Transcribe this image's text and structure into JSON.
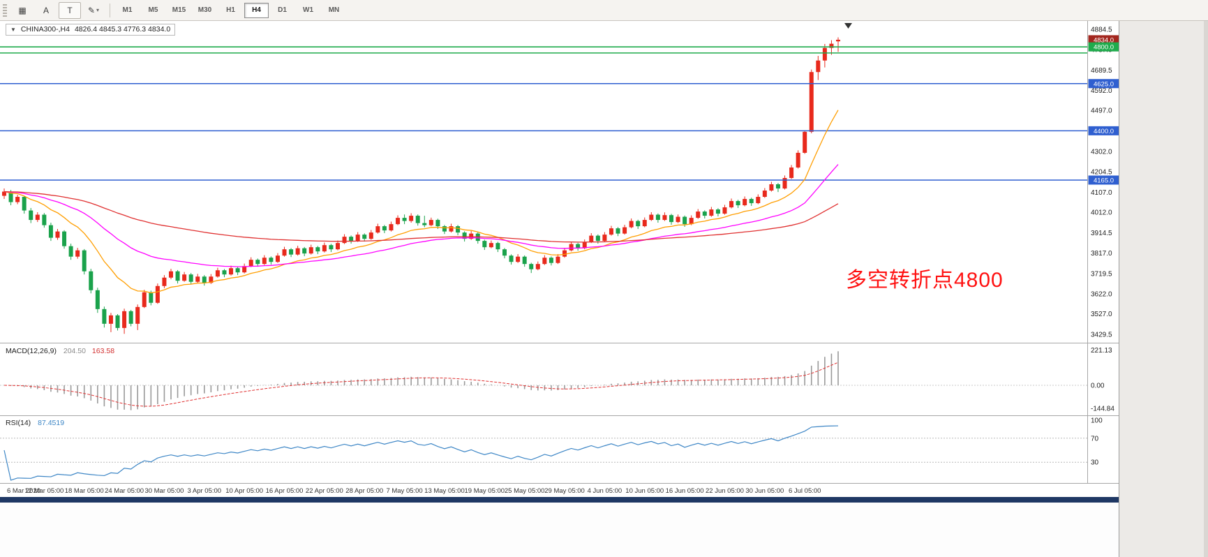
{
  "toolbar": {
    "buttons": [
      {
        "id": "chart-windows",
        "glyph": "▦"
      },
      {
        "id": "cursor-a",
        "glyph": "A"
      },
      {
        "id": "text-tool",
        "glyph": "T"
      },
      {
        "id": "draw-tool",
        "glyph": "✎"
      }
    ],
    "dropdown_glyph": "▾",
    "timeframes": [
      "M1",
      "M5",
      "M15",
      "M30",
      "H1",
      "H4",
      "D1",
      "W1",
      "MN"
    ],
    "active_timeframe": "H4"
  },
  "main_header": {
    "dropdown_icon": "▼",
    "symbol": "CHINA300-,H4",
    "ohlc": "4826.4 4845.3 4776.3 4834.0"
  },
  "macd_panel": {
    "label": "MACD(12,26,9)",
    "macd_value": "204.50",
    "signal_value": "163.58"
  },
  "rsi_panel": {
    "label": "RSI(14)",
    "value": "87.4519"
  },
  "annotation": {
    "text": "多空转折点4800",
    "color": "#ff1111"
  },
  "chart_data": {
    "type": "candlestick",
    "symbol": "CHINA300",
    "timeframe": "H4",
    "up_color": "#e8291c",
    "down_color": "#1aa24b",
    "label_step": 6,
    "x_labels": [
      "6 Mar 2020",
      "12 Mar 05:00",
      "18 Mar 05:00",
      "24 Mar 05:00",
      "30 Mar 05:00",
      "3 Apr 05:00",
      "10 Apr 05:00",
      "16 Apr 05:00",
      "22 Apr 05:00",
      "28 Apr 05:00",
      "7 May 05:00",
      "13 May 05:00",
      "19 May 05:00",
      "25 May 05:00",
      "29 May 05:00",
      "4 Jun 05:00",
      "10 Jun 05:00",
      "16 Jun 05:00",
      "22 Jun 05:00",
      "30 Jun 05:00",
      "6 Jul 05:00"
    ],
    "price_ticks": [
      4884.5,
      4787.0,
      4689.5,
      4592.0,
      4497.0,
      4399.5,
      4302.0,
      4204.5,
      4107.0,
      4012.0,
      3914.5,
      3817.0,
      3719.5,
      3622.0,
      3527.0,
      3429.5
    ],
    "price_badges": [
      {
        "value": 4834.0,
        "color": "#a3271f"
      },
      {
        "value": 4800.0,
        "color": "#1fab4c"
      },
      {
        "value": 4625.0,
        "color": "#2f5fd0"
      },
      {
        "value": 4400.0,
        "color": "#2f5fd0"
      },
      {
        "value": 4165.0,
        "color": "#2f5fd0"
      }
    ],
    "horizontal_lines": [
      {
        "value": 4800,
        "color": "#1fab4c"
      },
      {
        "value": 4771,
        "color": "#1fab4c"
      },
      {
        "value": 4625,
        "color": "#2f5fd0"
      },
      {
        "value": 4400,
        "color": "#2f5fd0"
      },
      {
        "value": 4165,
        "color": "#2f5fd0"
      }
    ],
    "moving_averages": [
      {
        "period": 13,
        "color": "#ff9e00"
      },
      {
        "period": 34,
        "color": "#ff00ff"
      },
      {
        "period": 89,
        "color": "#e03030"
      }
    ],
    "candles_ohlc": [
      [
        4090,
        4125,
        4075,
        4110
      ],
      [
        4110,
        4118,
        4045,
        4060
      ],
      [
        4060,
        4095,
        4050,
        4085
      ],
      [
        4085,
        4090,
        4005,
        4020
      ],
      [
        4020,
        4032,
        3960,
        3975
      ],
      [
        3975,
        4012,
        3965,
        4000
      ],
      [
        4000,
        4008,
        3938,
        3950
      ],
      [
        3950,
        3962,
        3875,
        3890
      ],
      [
        3890,
        3932,
        3880,
        3920
      ],
      [
        3920,
        3926,
        3838,
        3850
      ],
      [
        3850,
        3862,
        3785,
        3800
      ],
      [
        3800,
        3842,
        3790,
        3830
      ],
      [
        3830,
        3836,
        3715,
        3730
      ],
      [
        3730,
        3742,
        3625,
        3640
      ],
      [
        3640,
        3652,
        3532,
        3550
      ],
      [
        3550,
        3562,
        3462,
        3480
      ],
      [
        3480,
        3532,
        3440,
        3520
      ],
      [
        3520,
        3526,
        3448,
        3460
      ],
      [
        3460,
        3552,
        3432,
        3540
      ],
      [
        3540,
        3546,
        3468,
        3480
      ],
      [
        3480,
        3572,
        3450,
        3560
      ],
      [
        3560,
        3642,
        3555,
        3630
      ],
      [
        3630,
        3638,
        3568,
        3580
      ],
      [
        3580,
        3672,
        3575,
        3660
      ],
      [
        3660,
        3712,
        3650,
        3700
      ],
      [
        3700,
        3742,
        3692,
        3730
      ],
      [
        3730,
        3736,
        3672,
        3685
      ],
      [
        3685,
        3727,
        3680,
        3715
      ],
      [
        3715,
        3722,
        3668,
        3680
      ],
      [
        3680,
        3718,
        3672,
        3705
      ],
      [
        3705,
        3712,
        3662,
        3675
      ],
      [
        3675,
        3717,
        3670,
        3705
      ],
      [
        3705,
        3747,
        3700,
        3735
      ],
      [
        3735,
        3741,
        3702,
        3715
      ],
      [
        3715,
        3757,
        3710,
        3745
      ],
      [
        3745,
        3752,
        3712,
        3725
      ],
      [
        3725,
        3767,
        3720,
        3755
      ],
      [
        3755,
        3797,
        3750,
        3785
      ],
      [
        3785,
        3791,
        3752,
        3765
      ],
      [
        3765,
        3807,
        3760,
        3795
      ],
      [
        3795,
        3801,
        3762,
        3775
      ],
      [
        3775,
        3817,
        3770,
        3805
      ],
      [
        3805,
        3847,
        3800,
        3835
      ],
      [
        3835,
        3841,
        3798,
        3810
      ],
      [
        3810,
        3852,
        3805,
        3840
      ],
      [
        3840,
        3846,
        3802,
        3815
      ],
      [
        3815,
        3857,
        3810,
        3845
      ],
      [
        3845,
        3851,
        3812,
        3825
      ],
      [
        3825,
        3867,
        3820,
        3855
      ],
      [
        3855,
        3861,
        3822,
        3835
      ],
      [
        3835,
        3877,
        3830,
        3865
      ],
      [
        3865,
        3907,
        3860,
        3895
      ],
      [
        3895,
        3901,
        3862,
        3875
      ],
      [
        3875,
        3917,
        3870,
        3905
      ],
      [
        3905,
        3911,
        3872,
        3885
      ],
      [
        3885,
        3927,
        3880,
        3915
      ],
      [
        3915,
        3957,
        3910,
        3945
      ],
      [
        3945,
        3951,
        3912,
        3925
      ],
      [
        3925,
        3967,
        3920,
        3955
      ],
      [
        3955,
        3997,
        3950,
        3985
      ],
      [
        3985,
        4001,
        3955,
        3970
      ],
      [
        3970,
        4007,
        3962,
        3995
      ],
      [
        3995,
        4001,
        3948,
        3960
      ],
      [
        3960,
        3995,
        3940,
        3950
      ],
      [
        3950,
        3986,
        3945,
        3975
      ],
      [
        3975,
        3981,
        3932,
        3945
      ],
      [
        3945,
        3951,
        3908,
        3920
      ],
      [
        3920,
        3957,
        3915,
        3945
      ],
      [
        3945,
        3951,
        3902,
        3915
      ],
      [
        3915,
        3921,
        3872,
        3885
      ],
      [
        3885,
        3922,
        3880,
        3910
      ],
      [
        3910,
        3916,
        3862,
        3875
      ],
      [
        3875,
        3881,
        3832,
        3845
      ],
      [
        3845,
        3877,
        3840,
        3865
      ],
      [
        3865,
        3871,
        3822,
        3835
      ],
      [
        3835,
        3841,
        3792,
        3805
      ],
      [
        3805,
        3811,
        3762,
        3775
      ],
      [
        3775,
        3812,
        3770,
        3800
      ],
      [
        3800,
        3806,
        3752,
        3765
      ],
      [
        3765,
        3771,
        3722,
        3740
      ],
      [
        3740,
        3777,
        3735,
        3765
      ],
      [
        3765,
        3807,
        3760,
        3795
      ],
      [
        3795,
        3801,
        3758,
        3770
      ],
      [
        3770,
        3812,
        3765,
        3800
      ],
      [
        3800,
        3842,
        3795,
        3830
      ],
      [
        3830,
        3872,
        3825,
        3860
      ],
      [
        3860,
        3866,
        3828,
        3840
      ],
      [
        3840,
        3882,
        3835,
        3870
      ],
      [
        3870,
        3912,
        3865,
        3900
      ],
      [
        3900,
        3906,
        3862,
        3875
      ],
      [
        3875,
        3917,
        3870,
        3905
      ],
      [
        3905,
        3947,
        3900,
        3935
      ],
      [
        3935,
        3941,
        3898,
        3910
      ],
      [
        3910,
        3952,
        3905,
        3940
      ],
      [
        3940,
        3982,
        3935,
        3970
      ],
      [
        3970,
        3976,
        3932,
        3945
      ],
      [
        3945,
        3987,
        3940,
        3975
      ],
      [
        3975,
        4012,
        3970,
        4000
      ],
      [
        4000,
        4006,
        3962,
        3975
      ],
      [
        3975,
        4011,
        3970,
        3998
      ],
      [
        3998,
        4004,
        3952,
        3965
      ],
      [
        3965,
        4001,
        3960,
        3990
      ],
      [
        3990,
        3996,
        3942,
        3955
      ],
      [
        3955,
        3997,
        3950,
        3985
      ],
      [
        3985,
        4027,
        3980,
        4015
      ],
      [
        4015,
        4021,
        3982,
        3995
      ],
      [
        3995,
        4037,
        3990,
        4025
      ],
      [
        4025,
        4031,
        3992,
        4005
      ],
      [
        4005,
        4047,
        4000,
        4035
      ],
      [
        4035,
        4077,
        4030,
        4065
      ],
      [
        4065,
        4071,
        4032,
        4045
      ],
      [
        4045,
        4087,
        4040,
        4075
      ],
      [
        4075,
        4081,
        4042,
        4055
      ],
      [
        4055,
        4097,
        4050,
        4085
      ],
      [
        4085,
        4127,
        4080,
        4115
      ],
      [
        4115,
        4157,
        4110,
        4145
      ],
      [
        4145,
        4151,
        4108,
        4125
      ],
      [
        4125,
        4187,
        4120,
        4175
      ],
      [
        4175,
        4237,
        4170,
        4225
      ],
      [
        4225,
        4307,
        4220,
        4295
      ],
      [
        4295,
        4402,
        4290,
        4395
      ],
      [
        4395,
        4692,
        4388,
        4680
      ],
      [
        4680,
        4757,
        4642,
        4735
      ],
      [
        4735,
        4814,
        4702,
        4795
      ],
      [
        4795,
        4832,
        4762,
        4815
      ],
      [
        4826.4,
        4845.3,
        4776.3,
        4834.0
      ]
    ],
    "subcharts": [
      {
        "type": "macd-histogram",
        "label": "MACD(12,26,9)",
        "fast": 12,
        "slow": 26,
        "signal_period": 9,
        "axis_ticks": [
          221.13,
          0.0,
          -144.84
        ],
        "range": [
          -170,
          240
        ],
        "histogram_color": "#9a9a9a",
        "signal_color": "#e03030"
      },
      {
        "type": "rsi-line",
        "label": "RSI(14)",
        "period": 14,
        "axis_ticks": [
          100,
          70,
          30
        ],
        "levels": [
          70,
          30
        ],
        "range": [
          0,
          100
        ],
        "line_color": "#3d86c6"
      }
    ]
  }
}
